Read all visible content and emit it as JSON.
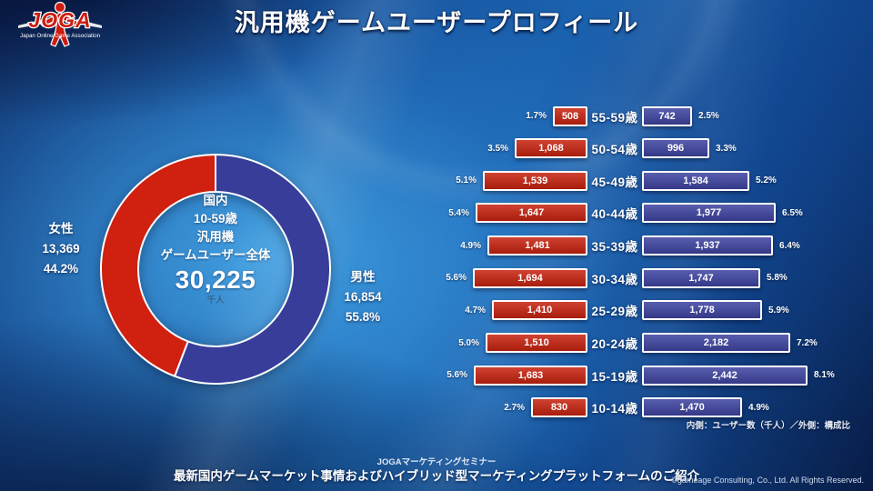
{
  "logo": {
    "text": "JOGA",
    "caption": "Japan Online Game Association",
    "color": "#cc1d10"
  },
  "title": "汎用機ゲームユーザープロフィール",
  "donut": {
    "center_lines": [
      "国内",
      "10-59歳",
      "汎用機",
      "ゲームユーザー全体"
    ],
    "total_value": "30,225",
    "total_unit": "千人",
    "female": {
      "label": "女性",
      "value": "13,369",
      "pct": "44.2%"
    },
    "male": {
      "label": "男性",
      "value": "16,854",
      "pct": "55.8%"
    },
    "male_pct_num": 55.8,
    "colors": {
      "male": "#383d99",
      "female": "#cf2010"
    }
  },
  "chart_data": {
    "type": "bar",
    "variant": "population-pyramid",
    "title": "汎用機ゲームユーザープロフィール",
    "categories": [
      "55-59歳",
      "50-54歳",
      "45-49歳",
      "40-44歳",
      "35-39歳",
      "30-34歳",
      "25-29歳",
      "20-24歳",
      "15-19歳",
      "10-14歳"
    ],
    "series": [
      {
        "name": "女性",
        "values": [
          508,
          1068,
          1539,
          1647,
          1481,
          1694,
          1410,
          1510,
          1683,
          830
        ],
        "pcts": [
          "1.7%",
          "3.5%",
          "5.1%",
          "5.4%",
          "4.9%",
          "5.6%",
          "4.7%",
          "5.0%",
          "5.6%",
          "2.7%"
        ],
        "color": "#c8220f",
        "total": 13369,
        "total_pct": "44.2%"
      },
      {
        "name": "男性",
        "values": [
          742,
          996,
          1584,
          1977,
          1937,
          1747,
          1778,
          2182,
          2442,
          1470
        ],
        "pcts": [
          "2.5%",
          "3.3%",
          "5.2%",
          "6.5%",
          "6.4%",
          "5.8%",
          "5.9%",
          "7.2%",
          "8.1%",
          "4.9%"
        ],
        "color": "#3e43a1",
        "total": 16854,
        "total_pct": "55.8%"
      }
    ],
    "grand_total": 30225,
    "unit": "千人",
    "note": "内側：ユーザー数（千人）／外側：構成比",
    "legend_position": "none",
    "grid": false
  },
  "footer": {
    "line1": "JOGAマーケティングセミナー",
    "line2": "最新国内ゲームマーケット事情およびハイブリッド型マーケティングプラットフォームのご紹介",
    "copyright": "©gameage Consulting, Co., Ltd. All Rights Reserved."
  }
}
